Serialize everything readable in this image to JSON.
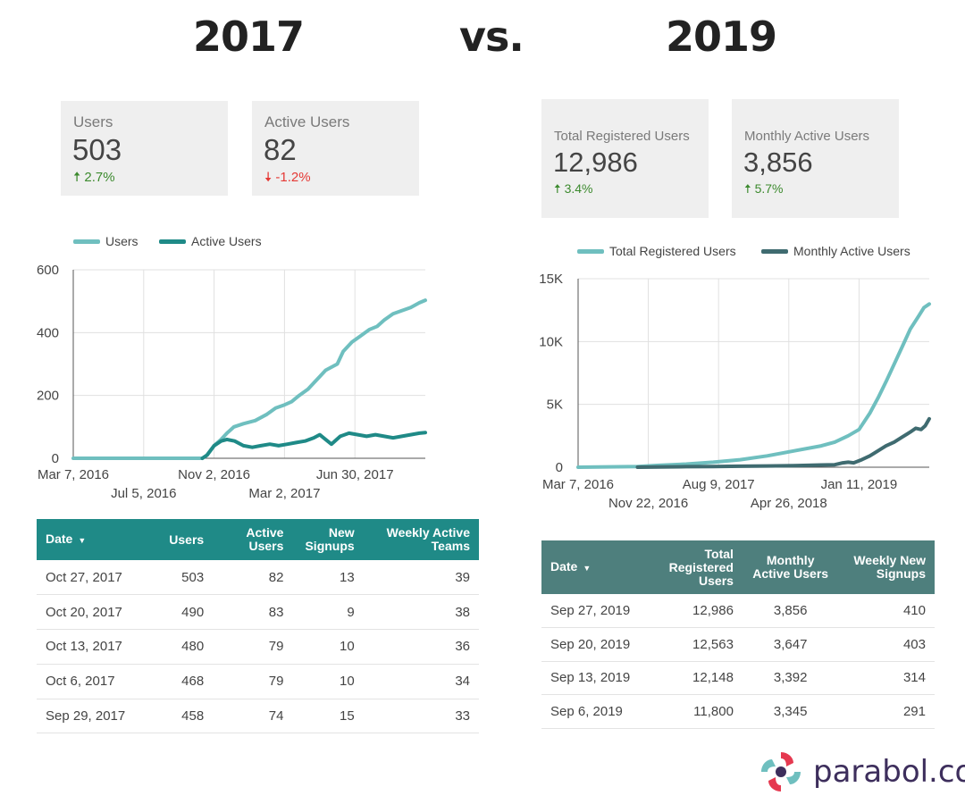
{
  "titles": {
    "left": "2017",
    "vs": "vs.",
    "right": "2019"
  },
  "colors": {
    "teal_light": "#6fbfbf",
    "teal_dark": "#1f8a87",
    "slate": "#3f6b70",
    "table_header_2017": "#1f8a87",
    "table_header_2019": "#4e7f7d",
    "up": "#3c8a2e",
    "down": "#e53935"
  },
  "kpis_2017": [
    {
      "label": "Users",
      "value": "503",
      "delta": "2.7%",
      "direction": "up"
    },
    {
      "label": "Active Users",
      "value": "82",
      "delta": "-1.2%",
      "direction": "down"
    }
  ],
  "kpis_2019": [
    {
      "label": "Total Registered Users",
      "value": "12,986",
      "delta": "3.4%",
      "direction": "up"
    },
    {
      "label": "Monthly Active Users",
      "value": "3,856",
      "delta": "5.7%",
      "direction": "up"
    }
  ],
  "chart_data": [
    {
      "type": "line",
      "title": "2017",
      "legend": [
        "Users",
        "Active Users"
      ],
      "ylim": [
        0,
        600
      ],
      "yticks": [
        "0",
        "200",
        "400",
        "600"
      ],
      "xticks_top": [
        "Mar 7, 2016",
        "Nov 2, 2016",
        "Jun 30, 2017"
      ],
      "xticks_bottom": [
        "Jul 5, 2016",
        "Mar 2, 2017"
      ],
      "x_range_days": [
        0,
        600
      ],
      "x_tick_days": [
        0,
        120,
        240,
        360,
        480
      ],
      "series": [
        {
          "name": "Users",
          "x": [
            0,
            220,
            228,
            240,
            252,
            262,
            274,
            290,
            310,
            330,
            345,
            360,
            372,
            385,
            400,
            410,
            420,
            430,
            440,
            450,
            460,
            475,
            490,
            505,
            518,
            530,
            545,
            560,
            575,
            590,
            600
          ],
          "values": [
            0,
            0,
            10,
            40,
            60,
            80,
            100,
            110,
            120,
            140,
            160,
            170,
            180,
            200,
            220,
            240,
            260,
            280,
            290,
            300,
            340,
            370,
            390,
            410,
            420,
            440,
            460,
            470,
            480,
            495,
            503
          ]
        },
        {
          "name": "Active Users",
          "x": [
            220,
            228,
            240,
            252,
            262,
            275,
            290,
            305,
            320,
            335,
            350,
            365,
            380,
            395,
            410,
            420,
            430,
            440,
            455,
            470,
            485,
            500,
            515,
            530,
            545,
            560,
            575,
            590,
            600
          ],
          "values": [
            0,
            10,
            40,
            55,
            60,
            55,
            40,
            35,
            40,
            45,
            40,
            45,
            50,
            55,
            65,
            75,
            60,
            45,
            70,
            80,
            75,
            70,
            75,
            70,
            65,
            70,
            75,
            80,
            82
          ]
        }
      ]
    },
    {
      "type": "line",
      "title": "2019",
      "legend": [
        "Total Registered Users",
        "Monthly Active Users"
      ],
      "ylim": [
        0,
        15000
      ],
      "yticks": [
        "0",
        "5K",
        "10K",
        "15K"
      ],
      "xticks_top": [
        "Mar 7, 2016",
        "Aug 9, 2017",
        "Jan 11, 2019"
      ],
      "xticks_bottom": [
        "Nov 22, 2016",
        "Apr 26, 2018"
      ],
      "x_range_days": [
        0,
        1300
      ],
      "x_tick_days": [
        0,
        260,
        520,
        780,
        1040
      ],
      "series": [
        {
          "name": "Total Registered Users",
          "x": [
            0,
            220,
            300,
            400,
            500,
            600,
            700,
            800,
            900,
            950,
            1000,
            1040,
            1080,
            1110,
            1140,
            1170,
            1200,
            1230,
            1260,
            1280,
            1300
          ],
          "values": [
            0,
            50,
            150,
            250,
            400,
            600,
            900,
            1300,
            1700,
            2000,
            2500,
            3000,
            4300,
            5500,
            6800,
            8200,
            9600,
            11000,
            12000,
            12700,
            12986
          ]
        },
        {
          "name": "Monthly Active Users",
          "x": [
            220,
            300,
            400,
            500,
            600,
            700,
            800,
            900,
            950,
            980,
            1000,
            1020,
            1050,
            1080,
            1110,
            1140,
            1170,
            1200,
            1230,
            1250,
            1270,
            1285,
            1300
          ],
          "values": [
            0,
            20,
            40,
            60,
            80,
            100,
            130,
            180,
            200,
            350,
            400,
            350,
            600,
            900,
            1300,
            1700,
            2000,
            2400,
            2800,
            3100,
            3000,
            3300,
            3856
          ]
        }
      ]
    }
  ],
  "table_2017": {
    "headers": [
      "Date",
      "Users",
      "Active Users",
      "New Signups",
      "Weekly Active Teams"
    ],
    "rows": [
      [
        "Oct 27, 2017",
        "503",
        "82",
        "13",
        "39"
      ],
      [
        "Oct 20, 2017",
        "490",
        "83",
        "9",
        "38"
      ],
      [
        "Oct 13, 2017",
        "480",
        "79",
        "10",
        "36"
      ],
      [
        "Oct 6, 2017",
        "468",
        "79",
        "10",
        "34"
      ],
      [
        "Sep 29, 2017",
        "458",
        "74",
        "15",
        "33"
      ]
    ]
  },
  "table_2019": {
    "headers": [
      "Date",
      "Total Registered Users",
      "Monthly Active Users",
      "Weekly New Signups"
    ],
    "rows": [
      [
        "Sep 27, 2019",
        "12,986",
        "3,856",
        "410"
      ],
      [
        "Sep 20, 2019",
        "12,563",
        "3,647",
        "403"
      ],
      [
        "Sep 13, 2019",
        "12,148",
        "3,392",
        "314"
      ],
      [
        "Sep 6, 2019",
        "11,800",
        "3,345",
        "291"
      ]
    ]
  },
  "logo": {
    "text": "parabol.co",
    "icon": "parabol-logo-icon"
  }
}
